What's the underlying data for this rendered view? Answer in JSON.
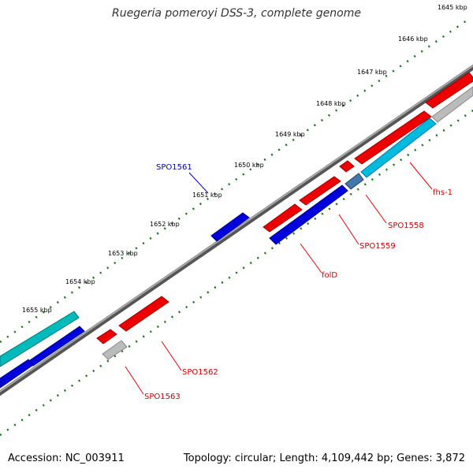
{
  "title": "Ruegeria pomeroyi DSS-3, complete genome",
  "footer": {
    "accession": "Accession: NC_003911",
    "summary": "Topology: circular; Length: 4,109,442 bp; Genes: 3,872"
  },
  "colors": {
    "forward_gene": "#ee0000",
    "reverse_gene": "#0000dd",
    "rna_gene": "#00bbdd",
    "teal_gene": "#00bbbb",
    "pseudo_gene": "#bbbbbb",
    "steel_gene": "#4477aa",
    "backbone": "#808080",
    "tick_marks": "#117711"
  },
  "tick_labels": [
    "1645 kbp",
    "1646 kbp",
    "1647 kbp",
    "1648 kbp",
    "1649 kbp",
    "1650 kbp",
    "1651 kbp",
    "1652 kbp",
    "1653 kbp",
    "1654 kbp",
    "1655 kbp"
  ],
  "gene_labels": {
    "SPO1561": "SPO1561",
    "fhs_1": "fhs-1",
    "SPO1558": "SPO1558",
    "SPO1559": "SPO1559",
    "folD": "folD",
    "SPO1562": "SPO1562",
    "SPO1563": "SPO1563"
  }
}
